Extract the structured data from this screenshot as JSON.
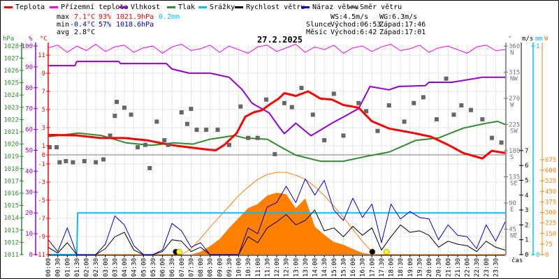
{
  "legend": [
    {
      "label": "Teplota",
      "color": "#ff0000"
    },
    {
      "label": "Přízemní teplota",
      "color": "#ff00ff"
    },
    {
      "label": "Vlhkost",
      "color": "#9400d3"
    },
    {
      "label": "Tlak",
      "color": "#2e8b2e"
    },
    {
      "label": "Srážky",
      "color": "#00bfff"
    },
    {
      "label": "Rychlost větru",
      "color": "#000000"
    },
    {
      "label": "Náraz větru",
      "color": "#0000cd"
    },
    {
      "label": "Směr větru",
      "color": "#666666"
    }
  ],
  "stats": {
    "max_label": "max",
    "max_temp": "7.1°C",
    "max_hum": "93%",
    "max_press": "1021.9hPa",
    "rain": "0.2mm",
    "min_label": "min",
    "min_temp": "-0.4°C",
    "min_hum": "57%",
    "min_press": "1018.6hPa",
    "avg_label": "avg",
    "avg_temp": "2.8°C",
    "ws": "WS:4.5m/s",
    "wg": "WG:6.3m/s",
    "sun_label": "Slunce",
    "sunrise": "Východ:06:53",
    "sunset": "Západ:17:46",
    "moon_label": "Měsíc",
    "moonrise": "Východ:6:42",
    "moonset": "Západ:17:01"
  },
  "chart_data": {
    "type": "line",
    "title": "27.2.2025",
    "xlabel": "čas",
    "x_range_hours": [
      0,
      24
    ],
    "grid": true,
    "x_tick_labels": [
      "00:00",
      "00:30",
      "01:00",
      "01:30",
      "02:00",
      "02:30",
      "03:00",
      "03:30",
      "04:00",
      "04:30",
      "05:00",
      "05:30",
      "06:00",
      "06:30",
      "07:00",
      "07:30",
      "08:00",
      "08:30",
      "09:00",
      "09:30",
      "10:00",
      "10:30",
      "11:00",
      "11:30",
      "12:00",
      "12:30",
      "13:00",
      "13:30",
      "14:00",
      "14:30",
      "15:00",
      "15:30",
      "16:00",
      "16:30",
      "17:00",
      "17:30",
      "18:00",
      "18:30",
      "19:00",
      "19:30",
      "20:00",
      "20:30",
      "21:00",
      "21:30",
      "22:00",
      "22:30",
      "23:00",
      "23:30"
    ],
    "axes": {
      "pressure": {
        "unit": "hPa",
        "range": [
          1011,
          1028
        ],
        "ticks": [
          1011,
          1012,
          1013,
          1014,
          1015,
          1016,
          1017,
          1018,
          1019,
          1020,
          1021,
          1022,
          1023,
          1024,
          1025,
          1026,
          1027,
          1028
        ]
      },
      "humidity": {
        "unit": "%",
        "range": [
          0,
          100
        ],
        "ticks": [
          0,
          10,
          20,
          30,
          40,
          50,
          60,
          70,
          80,
          90,
          100
        ]
      },
      "temperature": {
        "unit": "°C",
        "range": [
          -11,
          12
        ],
        "ticks": [
          -11,
          -9,
          -7,
          -5,
          -3,
          -1,
          0,
          1,
          3,
          5,
          7,
          9,
          11
        ]
      },
      "direction": {
        "unit": "°",
        "range": [
          0,
          360
        ],
        "ticks": [
          {
            "v": 45,
            "l": "NE"
          },
          {
            "v": 90,
            "l": "E"
          },
          {
            "v": 135,
            "l": "SE"
          },
          {
            "v": 180,
            "l": "S"
          },
          {
            "v": 225,
            "l": "SW"
          },
          {
            "v": 270,
            "l": "W"
          },
          {
            "v": 315,
            "l": "NW"
          },
          {
            "v": 360,
            "l": "N"
          }
        ]
      },
      "wind": {
        "unit": "m/s",
        "range": [
          0,
          7
        ],
        "ticks": [
          0,
          1,
          2,
          3,
          4,
          5,
          6,
          7
        ]
      },
      "rain": {
        "unit": "mm",
        "range": [
          0,
          1
        ],
        "ticks": [
          0,
          1
        ]
      },
      "solar": {
        "unit": "W",
        "range": [
          0,
          675
        ],
        "ticks": [
          0,
          75,
          150,
          225,
          300,
          375,
          450,
          525,
          600,
          675
        ]
      }
    },
    "series": [
      {
        "name": "Teplota",
        "axis": "temperature",
        "color": "#ff0000",
        "points": [
          [
            0,
            2.2
          ],
          [
            1.5,
            2.15
          ],
          [
            2.75,
            1.85
          ],
          [
            4,
            1.85
          ],
          [
            5.2,
            1.6
          ],
          [
            6.4,
            1.1
          ],
          [
            7.3,
            0.85
          ],
          [
            8.3,
            0.6
          ],
          [
            8.8,
            0.5
          ],
          [
            9.25,
            1.1
          ],
          [
            9.9,
            2.4
          ],
          [
            10.35,
            4.2
          ],
          [
            10.8,
            4.7
          ],
          [
            11.2,
            4.9
          ],
          [
            11.6,
            5.5
          ],
          [
            12.1,
            6.2
          ],
          [
            12.4,
            6.8
          ],
          [
            13.0,
            6.5
          ],
          [
            13.65,
            7.0
          ],
          [
            14.3,
            6.2
          ],
          [
            14.9,
            6.1
          ],
          [
            15.5,
            5.5
          ],
          [
            16.3,
            5.2
          ],
          [
            17.0,
            3.7
          ],
          [
            17.9,
            2.9
          ],
          [
            19.2,
            2.4
          ],
          [
            20.1,
            2.0
          ],
          [
            21.0,
            1.1
          ],
          [
            21.8,
            0.2
          ],
          [
            22.8,
            -0.4
          ],
          [
            23.3,
            0.45
          ],
          [
            24,
            0.2
          ]
        ]
      },
      {
        "name": "Přízemní teplota",
        "axis": "temperature",
        "color": "#ff00ff",
        "step_hours": 0.5,
        "values": [
          11.8,
          12.1,
          11.3,
          12.0,
          11.5,
          12.2,
          11.4,
          11.9,
          12.1,
          11.3,
          11.8,
          12.0,
          11.2,
          11.9,
          12.2,
          11.5,
          11.7,
          12.1,
          11.3,
          12.0,
          11.6,
          11.2,
          11.9,
          12.1,
          11.4,
          11.8,
          12.2,
          11.3,
          11.9,
          11.6,
          12.1,
          11.2,
          11.8,
          12.0,
          11.4,
          11.9,
          12.2,
          11.5,
          11.7,
          12.1,
          11.3,
          11.8,
          12.0,
          11.6,
          11.2,
          11.9,
          12.1,
          11.5,
          11.6
        ]
      },
      {
        "name": "Vlhkost",
        "axis": "humidity",
        "color": "#9400d3",
        "points": [
          [
            0,
            90.6
          ],
          [
            1.4,
            90.6
          ],
          [
            1.5,
            92.6
          ],
          [
            3.7,
            92.6
          ],
          [
            3.8,
            91.6
          ],
          [
            6.2,
            91.6
          ],
          [
            6.5,
            89
          ],
          [
            7.4,
            87
          ],
          [
            8.5,
            87
          ],
          [
            9.5,
            85
          ],
          [
            10.2,
            79
          ],
          [
            10.7,
            72.6
          ],
          [
            11.2,
            70
          ],
          [
            11.6,
            68
          ],
          [
            12.1,
            61.5
          ],
          [
            12.4,
            58
          ],
          [
            13.0,
            63
          ],
          [
            13.8,
            57
          ],
          [
            14.9,
            63
          ],
          [
            15.5,
            66
          ],
          [
            16.3,
            70
          ],
          [
            16.9,
            80.6
          ],
          [
            17.9,
            79
          ],
          [
            18.4,
            80.6
          ],
          [
            19.8,
            81
          ],
          [
            20.0,
            82.6
          ],
          [
            21.2,
            82.6
          ],
          [
            22.8,
            85
          ],
          [
            24,
            85
          ]
        ]
      },
      {
        "name": "Tlak",
        "axis": "pressure",
        "color": "#2e8b2e",
        "points": [
          [
            0,
            1020.6
          ],
          [
            1.6,
            1020.9
          ],
          [
            2.8,
            1020.7
          ],
          [
            4.1,
            1020.1
          ],
          [
            5.4,
            1019.9
          ],
          [
            6.6,
            1020.1
          ],
          [
            7.6,
            1020.0
          ],
          [
            8.5,
            1020.4
          ],
          [
            9.8,
            1020.7
          ],
          [
            10.3,
            1020.5
          ],
          [
            11.5,
            1020.4
          ],
          [
            12.4,
            1019.6
          ],
          [
            13.0,
            1019.1
          ],
          [
            14.3,
            1018.6
          ],
          [
            15.5,
            1018.6
          ],
          [
            16.7,
            1019.0
          ],
          [
            17.9,
            1019.35
          ],
          [
            19.3,
            1020.3
          ],
          [
            20.5,
            1020.5
          ],
          [
            21.8,
            1021.3
          ],
          [
            23.0,
            1021.7
          ],
          [
            23.6,
            1021.85
          ],
          [
            24,
            1021.6
          ]
        ]
      },
      {
        "name": "Srážky",
        "axis": "rain",
        "color": "#00bfff",
        "points": [
          [
            0,
            0
          ],
          [
            1.5,
            0
          ],
          [
            1.55,
            0.2
          ],
          [
            24,
            0.2
          ]
        ]
      },
      {
        "name": "Rychlost větru",
        "axis": "wind",
        "color": "#000000",
        "step_hours": 0.5,
        "values": [
          0.5,
          0.1,
          0.8,
          0,
          0,
          0,
          0.4,
          1.2,
          1.5,
          0.3,
          0,
          0,
          0.2,
          1.0,
          0.9,
          0.2,
          0.5,
          0,
          0,
          0,
          0,
          1.2,
          0.8,
          1.8,
          2.2,
          2.7,
          2.0,
          2.3,
          3.0,
          1.6,
          1.8,
          1.2,
          1.9,
          1.3,
          1.8,
          0.3,
          1.2,
          2.0,
          1.5,
          1.6,
          1.3,
          0.5,
          0.9,
          0.7,
          0.6,
          0.2,
          0.9,
          0.5,
          0.3
        ]
      },
      {
        "name": "Náraz větru",
        "axis": "wind",
        "color": "#0000cd",
        "step_hours": 0.5,
        "values": [
          1.0,
          0.2,
          1.8,
          0,
          0,
          0,
          0.7,
          2.6,
          2.0,
          0.6,
          0,
          0,
          0.3,
          2.1,
          1.6,
          0.5,
          0.8,
          0,
          0,
          0,
          0,
          1.8,
          1.4,
          3.2,
          3.5,
          4.6,
          3.5,
          5.1,
          4.0,
          5.0,
          3.0,
          2.3,
          3.8,
          2.5,
          3.4,
          0.8,
          3.4,
          2.4,
          2.9,
          2.5,
          2.4,
          1.0,
          2.0,
          1.3,
          1.2,
          0.4,
          2.0,
          0.9,
          2.2
        ]
      },
      {
        "name": "Směr větru",
        "axis": "direction",
        "color": "#666666",
        "type": "scatter",
        "points": [
          [
            0.07,
            186
          ],
          [
            0.44,
            186
          ],
          [
            0.6,
            160
          ],
          [
            0.93,
            162
          ],
          [
            1.3,
            160
          ],
          [
            1.9,
            162
          ],
          [
            2.5,
            160
          ],
          [
            2.9,
            165
          ],
          [
            3.25,
            206
          ],
          [
            3.5,
            240
          ],
          [
            3.6,
            264
          ],
          [
            4.0,
            254
          ],
          [
            4.35,
            242
          ],
          [
            4.7,
            186
          ],
          [
            5.1,
            190
          ],
          [
            5.33,
            150
          ],
          [
            5.7,
            230
          ],
          [
            6.1,
            198
          ],
          [
            6.3,
            190
          ],
          [
            7.0,
            246
          ],
          [
            7.3,
            226
          ],
          [
            7.5,
            252
          ],
          [
            7.8,
            216
          ],
          [
            8.3,
            216
          ],
          [
            8.9,
            216
          ],
          [
            9.5,
            190
          ],
          [
            10.1,
            256
          ],
          [
            10.5,
            202
          ],
          [
            11.0,
            202
          ],
          [
            11.45,
            268
          ],
          [
            11.9,
            174
          ],
          [
            12.4,
            262
          ],
          [
            12.8,
            255
          ],
          [
            13.3,
            288
          ],
          [
            13.9,
            242
          ],
          [
            14.5,
            198
          ],
          [
            15.0,
            278
          ],
          [
            15.5,
            206
          ],
          [
            16.3,
            262
          ],
          [
            16.7,
            248
          ],
          [
            17.3,
            214
          ],
          [
            17.9,
            258
          ],
          [
            18.7,
            230
          ],
          [
            19.2,
            262
          ],
          [
            19.7,
            272
          ],
          [
            20.4,
            234
          ],
          [
            20.9,
            304
          ],
          [
            21.3,
            242
          ],
          [
            21.7,
            258
          ],
          [
            22.2,
            250
          ],
          [
            22.8,
            234
          ],
          [
            23.3,
            202
          ],
          [
            23.8,
            194
          ]
        ]
      },
      {
        "axis": "solar",
        "color": "#ff8000",
        "type": "area",
        "points": [
          [
            0,
            0
          ],
          [
            7.5,
            0
          ],
          [
            8,
            20
          ],
          [
            8.5,
            60
          ],
          [
            9,
            110
          ],
          [
            9.5,
            190
          ],
          [
            10,
            260
          ],
          [
            10.5,
            330
          ],
          [
            11,
            360
          ],
          [
            11.5,
            420
          ],
          [
            12,
            440
          ],
          [
            12.5,
            430
          ],
          [
            13,
            330
          ],
          [
            13.5,
            400
          ],
          [
            14,
            200
          ],
          [
            14.5,
            140
          ],
          [
            15,
            90
          ],
          [
            15.5,
            70
          ],
          [
            16,
            40
          ],
          [
            16.5,
            12
          ],
          [
            17,
            2
          ],
          [
            17.3,
            0
          ],
          [
            24,
            0
          ]
        ]
      },
      {
        "axis": "solar",
        "color": "#ff8000",
        "type": "line",
        "points": [
          [
            0,
            0
          ],
          [
            7,
            0
          ],
          [
            7.5,
            40
          ],
          [
            8,
            115
          ],
          [
            8.5,
            195
          ],
          [
            9,
            270
          ],
          [
            9.5,
            345
          ],
          [
            10,
            420
          ],
          [
            10.5,
            480
          ],
          [
            11,
            535
          ],
          [
            11.5,
            570
          ],
          [
            12,
            585
          ],
          [
            12.5,
            585
          ],
          [
            13,
            565
          ],
          [
            13.5,
            535
          ],
          [
            14,
            485
          ],
          [
            14.5,
            420
          ],
          [
            15,
            345
          ],
          [
            15.5,
            265
          ],
          [
            16,
            180
          ],
          [
            16.5,
            95
          ],
          [
            17,
            20
          ],
          [
            17.25,
            0
          ],
          [
            24,
            0
          ]
        ]
      }
    ],
    "markers": [
      {
        "label": "moonrise",
        "hour": 6.7,
        "color": "#000000"
      },
      {
        "label": "sunrise",
        "hour": 6.88,
        "color": "#ffff00"
      },
      {
        "label": "moonset",
        "hour": 17.02,
        "color": "#000000"
      },
      {
        "label": "sunset",
        "hour": 17.77,
        "color": "#ffff00"
      }
    ]
  }
}
